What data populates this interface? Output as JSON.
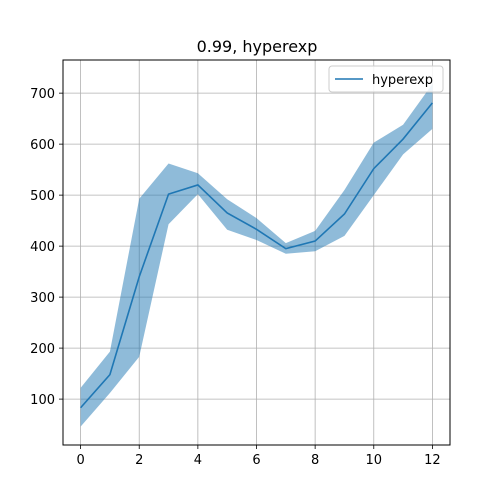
{
  "chart_data": {
    "type": "line",
    "title": "0.99, hyperexp",
    "xlabel": "",
    "ylabel": "",
    "x": [
      0,
      1,
      2,
      3,
      4,
      5,
      6,
      7,
      8,
      9,
      10,
      11,
      12
    ],
    "xlim": [
      -0.6,
      12.6
    ],
    "ylim": [
      10,
      765
    ],
    "xticks": [
      0,
      2,
      4,
      6,
      8,
      10,
      12
    ],
    "yticks": [
      100,
      200,
      300,
      400,
      500,
      600,
      700
    ],
    "grid": true,
    "legend_position": "top-right",
    "series": [
      {
        "name": "hyperexp",
        "color": "#1f77b4",
        "band_color": "#1f77b4",
        "values": [
          83,
          148,
          340,
          502,
          520,
          465,
          433,
          395,
          410,
          463,
          552,
          610,
          681
        ],
        "lower": [
          46,
          112,
          183,
          443,
          502,
          432,
          412,
          385,
          390,
          420,
          500,
          580,
          630
        ],
        "upper": [
          122,
          193,
          493,
          562,
          543,
          492,
          455,
          406,
          430,
          510,
          603,
          638,
          718
        ]
      }
    ]
  }
}
